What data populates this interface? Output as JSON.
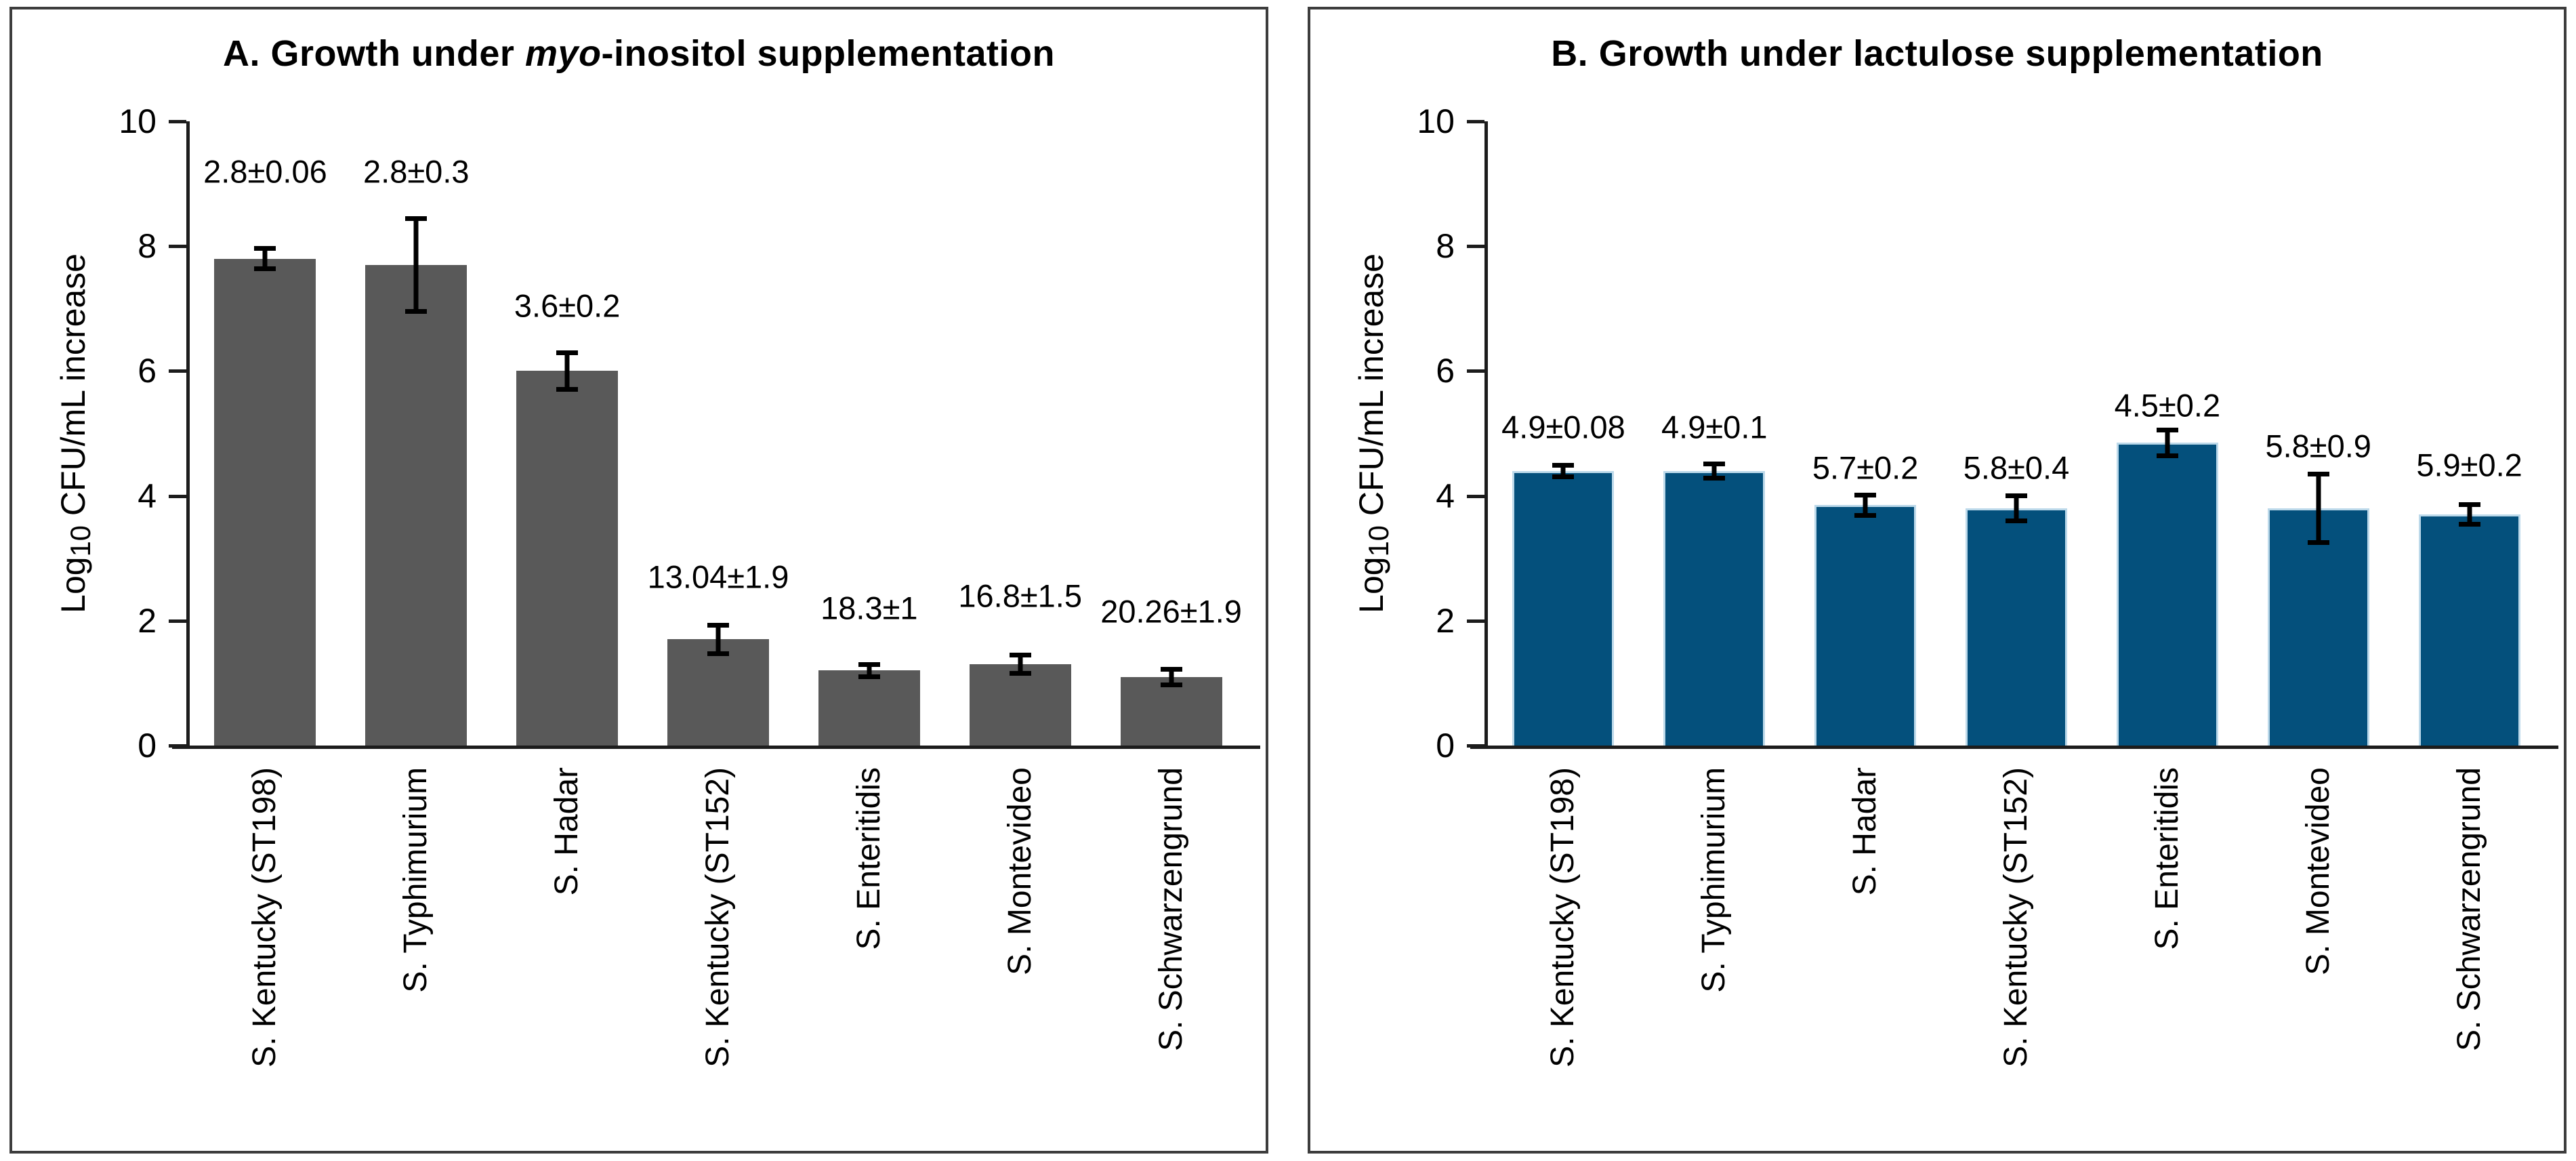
{
  "figure": {
    "background": "#ffffff",
    "frame_color": "#3d3d3d",
    "axis_color": "#1c1c1c",
    "error_bar_color": "#000000"
  },
  "chart_data": [
    {
      "type": "bar",
      "panel": "A",
      "title": "A. Growth under myo-inositol supplementation",
      "title_parts": [
        {
          "text": "A. Growth under ",
          "italic": false
        },
        {
          "text": "myo",
          "italic": true
        },
        {
          "text": "-inositol supplementation",
          "italic": false
        }
      ],
      "ylabel": "Log10 CFU/mL increase",
      "ylabel_parts": {
        "prefix": "Log",
        "sub": "10",
        "rest": " CFU/mL increase"
      },
      "ylim": [
        0,
        10
      ],
      "yticks": [
        0,
        2,
        4,
        6,
        8,
        10
      ],
      "grid": false,
      "legend": null,
      "bar_color": "#595959",
      "bar_edge_color": null,
      "categories": [
        "S. Kentucky (ST198)",
        "S. Typhimurium",
        "S. Hadar",
        "S. Kentucky (ST152)",
        "S. Enteritidis",
        "S. Montevideo",
        "S. Schwarzengrund"
      ],
      "values": [
        7.8,
        7.7,
        6.0,
        1.7,
        1.2,
        1.3,
        1.1
      ],
      "errors": [
        0.17,
        0.75,
        0.3,
        0.23,
        0.1,
        0.15,
        0.13
      ],
      "data_labels": [
        "2.8±0.06",
        "2.8±0.3",
        "3.6±0.2",
        "13.04±1.9",
        "18.3±1",
        "16.8±1.5",
        "20.26±1.9"
      ],
      "data_label_y": [
        9.2,
        9.2,
        7.05,
        2.7,
        2.2,
        2.4,
        2.15
      ]
    },
    {
      "type": "bar",
      "panel": "B",
      "title": "B. Growth under lactulose supplementation",
      "title_parts": [
        {
          "text": "B. Growth under lactulose supplementation",
          "italic": false
        }
      ],
      "ylabel": "Log10 CFU/mL increase",
      "ylabel_parts": {
        "prefix": "Log",
        "sub": "10",
        "rest": " CFU/mL increase"
      },
      "ylim": [
        0,
        10
      ],
      "yticks": [
        0,
        2,
        4,
        6,
        8,
        10
      ],
      "grid": false,
      "legend": null,
      "bar_color": "#04507c",
      "bar_edge_color": "#bcd9ea",
      "categories": [
        "S. Kentucky (ST198)",
        "S. Typhimurium",
        "S. Hadar",
        "S. Kentucky (ST152)",
        "S. Enteritidis",
        "S. Montevideo",
        "S. Schwarzengrund"
      ],
      "values": [
        4.4,
        4.4,
        3.85,
        3.8,
        4.85,
        3.8,
        3.7
      ],
      "errors": [
        0.1,
        0.12,
        0.17,
        0.21,
        0.21,
        0.55,
        0.16
      ],
      "data_labels": [
        "4.9±0.08",
        "4.9±0.1",
        "5.7±0.2",
        "5.8±0.4",
        "4.5±0.2",
        "5.8±0.9",
        "5.9±0.2"
      ],
      "data_label_y": [
        5.1,
        5.1,
        4.45,
        4.45,
        5.45,
        4.8,
        4.5
      ]
    }
  ]
}
